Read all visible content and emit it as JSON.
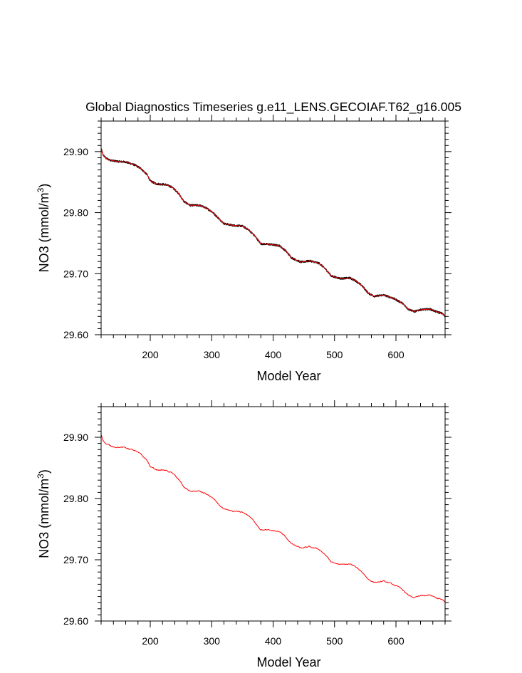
{
  "figure": {
    "title": "Global Diagnostics Timeseries g.e11_LENS.GECOIAF.T62_g16.005"
  },
  "chart_data": [
    {
      "type": "line",
      "title": "Global Diagnostics Timeseries g.e11_LENS.GECOIAF.T62_g16.005",
      "xlabel": "Model Year",
      "ylabel": "NO3 (mmol/m3)",
      "ylabel_parts": {
        "main": "NO3 (mmol/m",
        "sup": "3",
        "close": ")"
      },
      "xlim": [
        120,
        680
      ],
      "ylim": [
        29.6,
        29.95
      ],
      "xticks": [
        200,
        300,
        400,
        500,
        600
      ],
      "xtick_labels": [
        "200",
        "300",
        "400",
        "500",
        "600"
      ],
      "yticks": [
        29.6,
        29.7,
        29.8,
        29.9
      ],
      "ytick_labels": [
        "29.60",
        "29.70",
        "29.80",
        "29.90"
      ],
      "grid": false,
      "legend": "none",
      "series": [
        {
          "style": "noisy",
          "color": "#000000",
          "x": [
            120,
            123,
            128,
            135,
            145,
            160,
            175,
            185,
            195,
            200,
            210,
            225,
            235,
            245,
            255,
            265,
            280,
            290,
            300,
            310,
            320,
            335,
            350,
            360,
            370,
            380,
            395,
            410,
            420,
            430,
            445,
            460,
            475,
            485,
            495,
            510,
            525,
            535,
            545,
            555,
            565,
            580,
            595,
            610,
            620,
            630,
            640,
            655,
            665,
            675,
            680
          ],
          "y": [
            29.905,
            29.895,
            29.889,
            29.886,
            29.884,
            29.883,
            29.878,
            29.872,
            29.862,
            29.852,
            29.847,
            29.846,
            29.842,
            29.833,
            29.818,
            29.812,
            29.812,
            29.808,
            29.802,
            29.792,
            29.782,
            29.779,
            29.778,
            29.772,
            29.762,
            29.749,
            29.748,
            29.746,
            29.738,
            29.726,
            29.719,
            29.721,
            29.717,
            29.708,
            29.696,
            29.692,
            29.693,
            29.688,
            29.68,
            29.668,
            29.663,
            29.665,
            29.66,
            29.652,
            29.642,
            29.638,
            29.641,
            29.642,
            29.638,
            29.635,
            29.63
          ]
        },
        {
          "style": "smooth",
          "color": "#ff0000",
          "x": [
            120,
            123,
            128,
            135,
            145,
            160,
            175,
            185,
            195,
            200,
            210,
            225,
            235,
            245,
            255,
            265,
            280,
            290,
            300,
            310,
            320,
            335,
            350,
            360,
            370,
            380,
            395,
            410,
            420,
            430,
            445,
            460,
            475,
            485,
            495,
            510,
            525,
            535,
            545,
            555,
            565,
            580,
            595,
            610,
            620,
            630,
            640,
            655,
            665,
            675,
            680
          ],
          "y": [
            29.905,
            29.895,
            29.889,
            29.886,
            29.884,
            29.883,
            29.878,
            29.872,
            29.862,
            29.852,
            29.847,
            29.846,
            29.842,
            29.833,
            29.818,
            29.812,
            29.812,
            29.808,
            29.802,
            29.792,
            29.782,
            29.779,
            29.778,
            29.772,
            29.762,
            29.749,
            29.748,
            29.746,
            29.738,
            29.726,
            29.719,
            29.721,
            29.717,
            29.708,
            29.696,
            29.692,
            29.693,
            29.688,
            29.68,
            29.668,
            29.663,
            29.665,
            29.66,
            29.652,
            29.642,
            29.638,
            29.641,
            29.642,
            29.638,
            29.635,
            29.63
          ]
        }
      ]
    },
    {
      "type": "line",
      "title": "",
      "xlabel": "Model Year",
      "ylabel": "NO3 (mmol/m3)",
      "ylabel_parts": {
        "main": "NO3 (mmol/m",
        "sup": "3",
        "close": ")"
      },
      "xlim": [
        120,
        680
      ],
      "ylim": [
        29.6,
        29.95
      ],
      "xticks": [
        200,
        300,
        400,
        500,
        600
      ],
      "xtick_labels": [
        "200",
        "300",
        "400",
        "500",
        "600"
      ],
      "yticks": [
        29.6,
        29.7,
        29.8,
        29.9
      ],
      "ytick_labels": [
        "29.60",
        "29.70",
        "29.80",
        "29.90"
      ],
      "grid": false,
      "legend": "none",
      "series": [
        {
          "style": "jagged",
          "color": "#ff0000",
          "x": [
            120,
            123,
            128,
            135,
            145,
            160,
            175,
            185,
            195,
            200,
            210,
            225,
            235,
            245,
            255,
            265,
            280,
            290,
            300,
            310,
            320,
            335,
            350,
            360,
            370,
            380,
            395,
            410,
            420,
            430,
            445,
            460,
            475,
            485,
            495,
            510,
            525,
            535,
            545,
            555,
            565,
            580,
            595,
            610,
            620,
            630,
            640,
            655,
            665,
            675,
            680
          ],
          "y": [
            29.905,
            29.895,
            29.889,
            29.886,
            29.884,
            29.883,
            29.878,
            29.872,
            29.862,
            29.852,
            29.847,
            29.846,
            29.842,
            29.833,
            29.818,
            29.812,
            29.812,
            29.808,
            29.802,
            29.792,
            29.782,
            29.779,
            29.778,
            29.772,
            29.762,
            29.749,
            29.748,
            29.746,
            29.738,
            29.726,
            29.719,
            29.721,
            29.717,
            29.708,
            29.696,
            29.692,
            29.693,
            29.688,
            29.68,
            29.668,
            29.663,
            29.665,
            29.66,
            29.652,
            29.642,
            29.638,
            29.641,
            29.642,
            29.638,
            29.635,
            29.63
          ]
        }
      ]
    }
  ]
}
